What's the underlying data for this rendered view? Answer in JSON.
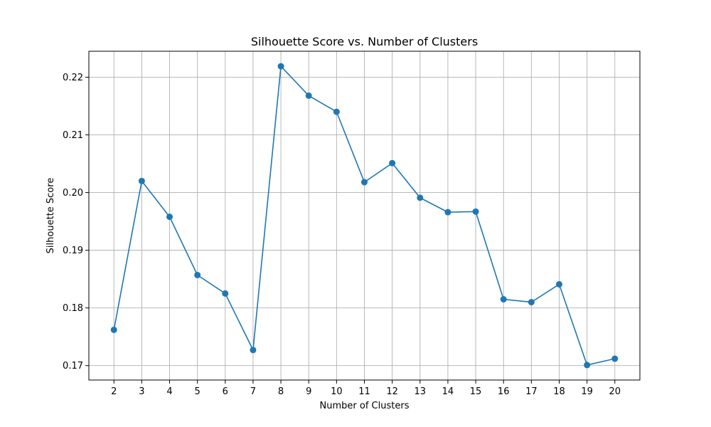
{
  "chart_data": {
    "type": "line",
    "title": "Silhouette Score vs. Number of Clusters",
    "xlabel": "Number of Clusters",
    "ylabel": "Silhouette Score",
    "x": [
      2,
      3,
      4,
      5,
      6,
      7,
      8,
      9,
      10,
      11,
      12,
      13,
      14,
      15,
      16,
      17,
      18,
      19,
      20
    ],
    "series": [
      {
        "values": [
          0.1762,
          0.202,
          0.1958,
          0.1857,
          0.1825,
          0.1727,
          0.2219,
          0.2168,
          0.214,
          0.2018,
          0.2051,
          0.1991,
          0.1966,
          0.1967,
          0.1815,
          0.181,
          0.1841,
          0.1701,
          0.1712
        ],
        "color": "#1f77b4",
        "marker": "circle"
      }
    ],
    "xlim": [
      1.1,
      20.9
    ],
    "ylim": [
      0.1675,
      0.2245
    ],
    "xticks": [
      2,
      3,
      4,
      5,
      6,
      7,
      8,
      9,
      10,
      11,
      12,
      13,
      14,
      15,
      16,
      17,
      18,
      19,
      20
    ],
    "yticks": [
      0.17,
      0.18,
      0.19,
      0.2,
      0.21,
      0.22
    ],
    "ytick_labels": [
      "0.17",
      "0.18",
      "0.19",
      "0.20",
      "0.21",
      "0.22"
    ],
    "grid": true,
    "legend": "none"
  }
}
